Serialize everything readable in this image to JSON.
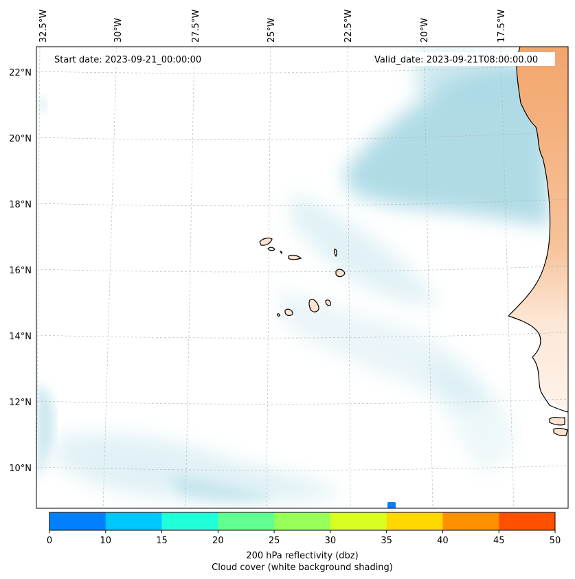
{
  "annotations": {
    "start_date": "Start date: 2023-09-21_00:00:00",
    "valid_date": "Valid_date: 2023-09-21T08:00:00.00"
  },
  "axes": {
    "longitude_labels": [
      "32.5°W",
      "30°W",
      "27.5°W",
      "25°W",
      "22.5°W",
      "20°W",
      "17.5°W"
    ],
    "latitude_labels": [
      "22°N",
      "20°N",
      "18°N",
      "16°N",
      "14°N",
      "12°N",
      "10°N"
    ]
  },
  "colorbar": {
    "tick_labels": [
      "0",
      "10",
      "15",
      "20",
      "25",
      "30",
      "35",
      "40",
      "45",
      "50"
    ],
    "colors": [
      "#0080ff",
      "#00c8ff",
      "#20ffd8",
      "#60ff90",
      "#98ff58",
      "#d8ff20",
      "#ffd800",
      "#ff9000",
      "#ff5000"
    ],
    "label_line1": "200 hPa reflectivity (dbz)",
    "label_line2": "Cloud cover (white background shading)"
  },
  "colors": {
    "cloud": "#a8d8e4",
    "land": "#f3a56b",
    "land_light": "#fde3cf"
  }
}
